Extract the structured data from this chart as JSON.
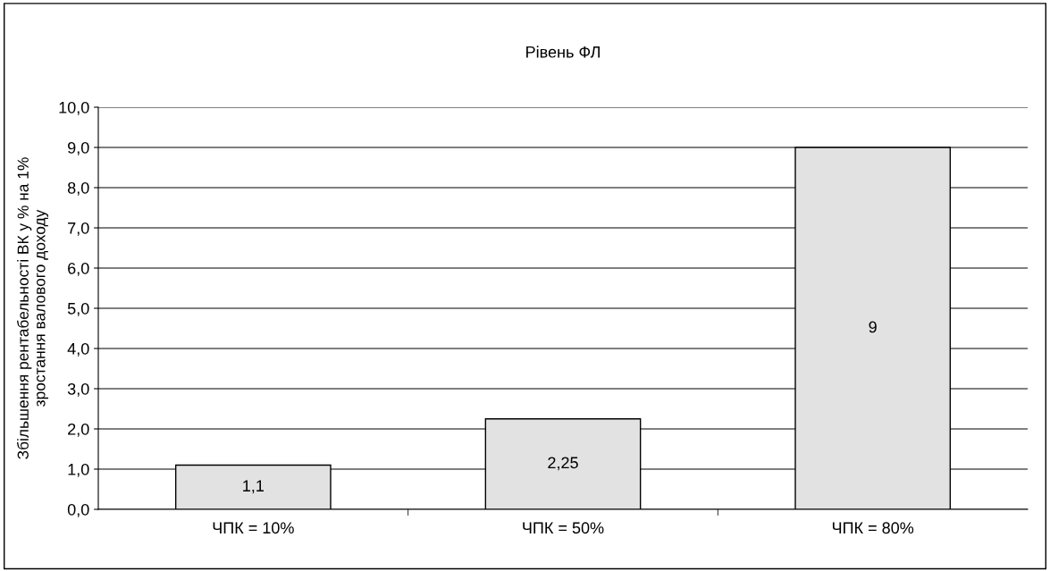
{
  "chart_data": {
    "type": "bar",
    "title": "Рівень ФЛ",
    "ylabel": "Збільшення рентабельності ВК у % на 1%\nзростання валового доходу",
    "categories": [
      "ЧПК = 10%",
      "ЧПК = 50%",
      "ЧПК = 80%"
    ],
    "values": [
      1.1,
      2.25,
      9
    ],
    "color": "#e2e2e2",
    "value_labels": [
      "1,1",
      "2,25",
      "9"
    ],
    "ylim": [
      0,
      10
    ],
    "yticks": [
      {
        "value": 0,
        "label": "0,0"
      },
      {
        "value": 1,
        "label": "1,0"
      },
      {
        "value": 2,
        "label": "2,0"
      },
      {
        "value": 3,
        "label": "3,0"
      },
      {
        "value": 4,
        "label": "4,0"
      },
      {
        "value": 5,
        "label": "5,0"
      },
      {
        "value": 6,
        "label": "6,0"
      },
      {
        "value": 7,
        "label": "7,0"
      },
      {
        "value": 8,
        "label": "8,0"
      },
      {
        "value": 9,
        "label": "9,0"
      },
      {
        "value": 10,
        "label": "10,0"
      }
    ],
    "grid": "y",
    "legend": false
  }
}
